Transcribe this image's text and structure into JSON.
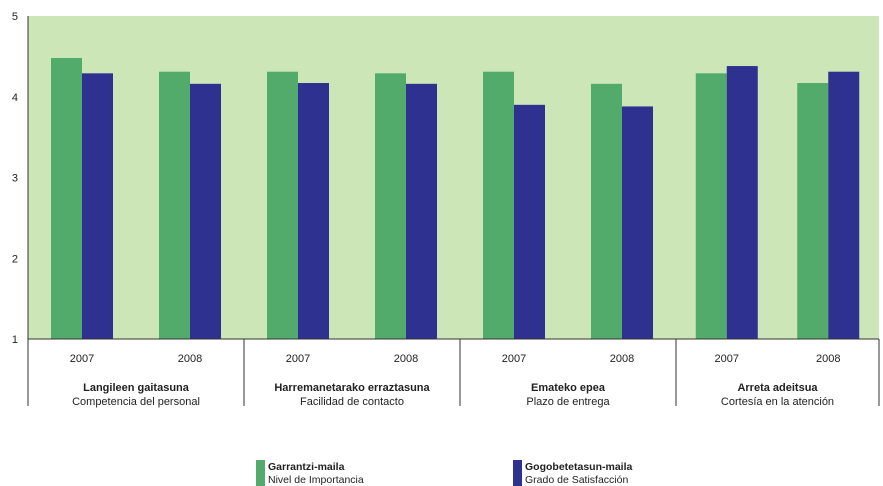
{
  "chart_data": {
    "type": "bar",
    "title": "",
    "ylim": [
      1,
      5
    ],
    "yticks": [
      "1",
      "2",
      "3",
      "4",
      "5"
    ],
    "grid": false,
    "groups": [
      {
        "label_eu": "Langileen gaitasuna",
        "label_es": "Competencia del personal",
        "years": [
          "2007",
          "2008"
        ],
        "importance": [
          4.48,
          4.31
        ],
        "satisfaction": [
          4.29,
          4.16
        ]
      },
      {
        "label_eu": "Harremanetarako erraztasuna",
        "label_es": "Facilidad de contacto",
        "years": [
          "2007",
          "2008"
        ],
        "importance": [
          4.31,
          4.29
        ],
        "satisfaction": [
          4.17,
          4.16
        ]
      },
      {
        "label_eu": "Emateko epea",
        "label_es": "Plazo de entrega",
        "years": [
          "2007",
          "2008"
        ],
        "importance": [
          4.31,
          4.16
        ],
        "satisfaction": [
          3.9,
          3.88
        ]
      },
      {
        "label_eu": "Arreta adeitsua",
        "label_es": "Cortesía en la atención",
        "years": [
          "2007",
          "2008"
        ],
        "importance": [
          4.29,
          4.17
        ],
        "satisfaction": [
          4.38,
          4.31
        ]
      }
    ],
    "series": [
      {
        "key": "importance",
        "name_eu": "Garrantzi-maila",
        "name_es": "Nivel de Importancia",
        "color": "#52ab6a"
      },
      {
        "key": "satisfaction",
        "name_eu": "Gogobetetasun-maila",
        "name_es": "Grado de Satisfacción",
        "color": "#2e3190"
      }
    ],
    "plot_background": "#cce6b8"
  }
}
